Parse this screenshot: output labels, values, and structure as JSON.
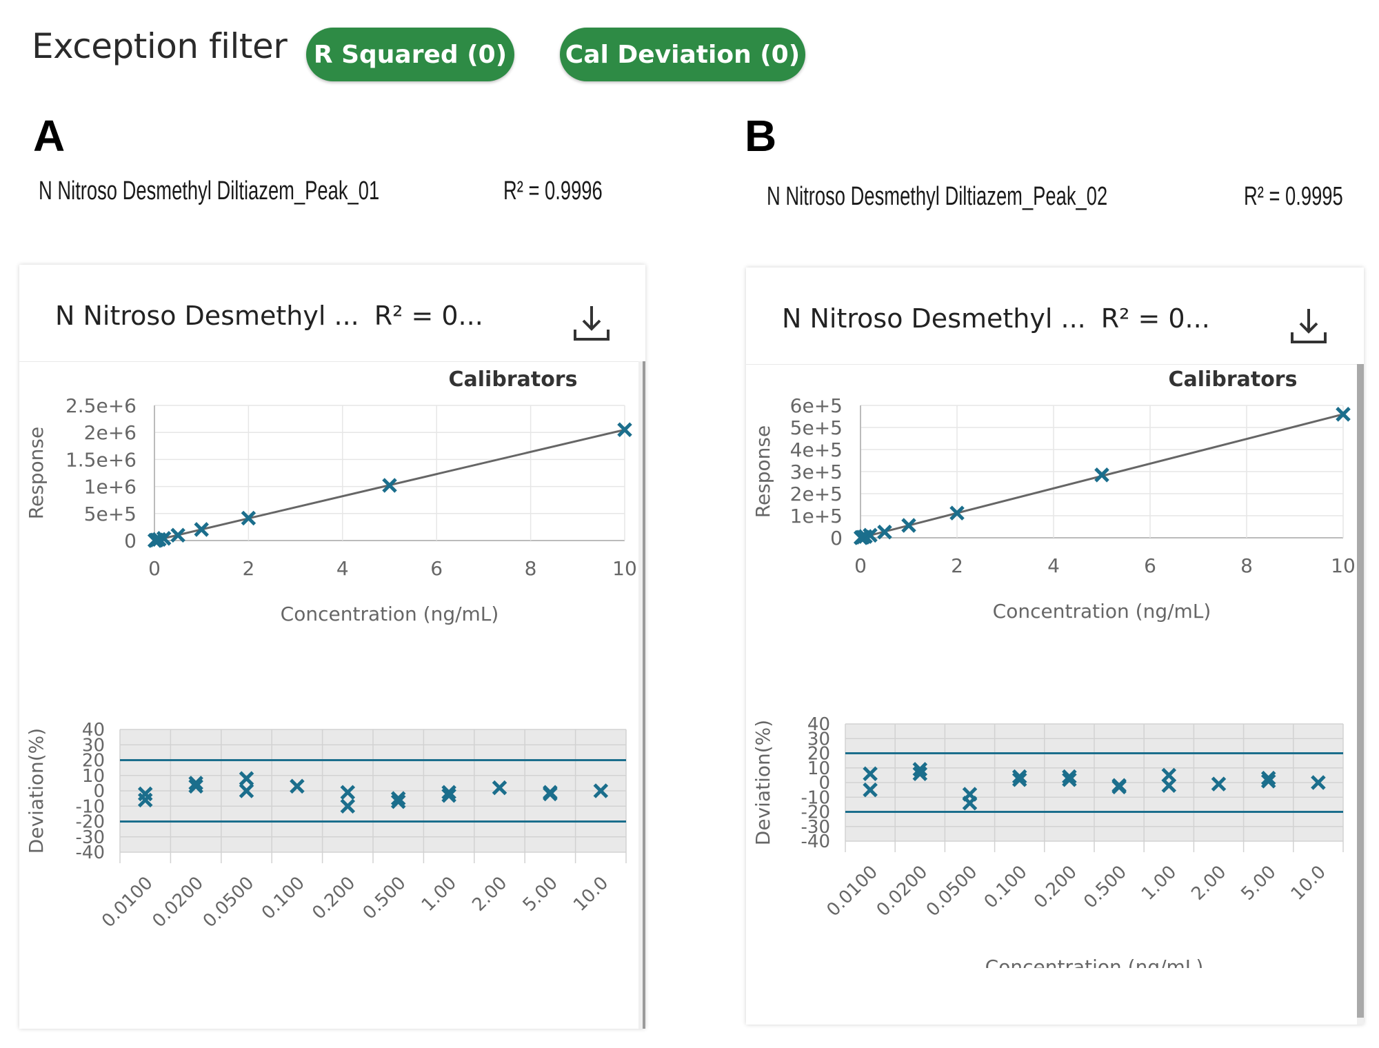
{
  "header": {
    "filter_title": "Exception filter",
    "chips": [
      {
        "label": "R Squared (0)"
      },
      {
        "label": "Cal Deviation (0)"
      }
    ]
  },
  "colors": {
    "chip_green": "#2e8b45",
    "marker_blue": "#1b6e8c",
    "fit_line": "#666666",
    "limit_line": "#1b6e8c"
  },
  "panels": [
    {
      "letter": "A",
      "caption_name": "N Nitroso Desmethyl Diltiazem_Peak_01",
      "caption_r2": "R² = 0.9996",
      "card_title": "N Nitroso Desmethyl ...",
      "card_r2": "R² = 0...",
      "download_icon": "download-icon",
      "chart_data": [
        {
          "type": "scatter",
          "title": "Calibrators",
          "xlabel": "Concentration (ng/mL)",
          "ylabel": "Response",
          "xlim": [
            0,
            10
          ],
          "ylim": [
            0,
            2500000
          ],
          "x_ticks": [
            0,
            2,
            4,
            6,
            8,
            10
          ],
          "y_ticks": [
            0,
            500000,
            1000000,
            1500000,
            2000000,
            2500000
          ],
          "y_tick_labels": [
            "0",
            "5e+5",
            "1e+6",
            "1.5e+6",
            "2e+6",
            "2.5e+6"
          ],
          "grid": true,
          "series": [
            {
              "type": "scatter",
              "x": [
                0.01,
                0.02,
                0.05,
                0.1,
                0.2,
                0.5,
                1,
                2,
                5,
                10
              ],
              "y": [
                2000,
                4100,
                10400,
                20300,
                40500,
                98500,
                205000,
                415000,
                1020000,
                2050000
              ]
            },
            {
              "type": "line",
              "x": [
                0,
                10
              ],
              "y": [
                0,
                2050000
              ]
            }
          ]
        },
        {
          "type": "scatter",
          "xlabel": "Concentration (ng/mL)",
          "ylabel": "Deviation(%)",
          "ylim": [
            -40,
            40
          ],
          "y_ticks": [
            40,
            30,
            20,
            10,
            0,
            -10,
            -20,
            -30,
            -40
          ],
          "categories": [
            "0.0100",
            "0.0200",
            "0.0500",
            "0.100",
            "0.200",
            "0.500",
            "1.00",
            "2.00",
            "5.00",
            "10.0"
          ],
          "limits": [
            20,
            -20
          ],
          "grid": true,
          "series": [
            {
              "points": [
                [
                  0,
                  -2
                ],
                [
                  0,
                  -6
                ],
                [
                  1,
                  5
                ],
                [
                  1,
                  3
                ],
                [
                  2,
                  8
                ],
                [
                  2,
                  0
                ],
                [
                  3,
                  3
                ],
                [
                  4,
                  -1
                ],
                [
                  4,
                  -10
                ],
                [
                  5,
                  -5
                ],
                [
                  5,
                  -7
                ],
                [
                  6,
                  -1
                ],
                [
                  6,
                  -3
                ],
                [
                  7,
                  2
                ],
                [
                  8,
                  -1
                ],
                [
                  8,
                  -2
                ],
                [
                  9,
                  0
                ]
              ]
            }
          ]
        }
      ]
    },
    {
      "letter": "B",
      "caption_name": "N Nitroso Desmethyl Diltiazem_Peak_02",
      "caption_r2": "R² = 0.9995",
      "card_title": "N Nitroso Desmethyl ...",
      "card_r2": "R² = 0...",
      "download_icon": "download-icon",
      "chart_data": [
        {
          "type": "scatter",
          "title": "Calibrators",
          "xlabel": "Concentration (ng/mL)",
          "ylabel": "Response",
          "xlim": [
            0,
            10
          ],
          "ylim": [
            0,
            600000
          ],
          "x_ticks": [
            0,
            2,
            4,
            6,
            8,
            10
          ],
          "y_ticks": [
            0,
            100000,
            200000,
            300000,
            400000,
            500000,
            600000
          ],
          "y_tick_labels": [
            "0",
            "1e+5",
            "2e+5",
            "3e+5",
            "4e+5",
            "5e+5",
            "6e+5"
          ],
          "grid": true,
          "series": [
            {
              "type": "scatter",
              "x": [
                0.01,
                0.02,
                0.05,
                0.1,
                0.2,
                0.5,
                1,
                2,
                5,
                10
              ],
              "y": [
                600,
                1200,
                2800,
                5800,
                11500,
                26000,
                56000,
                112000,
                285000,
                560000
              ]
            },
            {
              "type": "line",
              "x": [
                0,
                10
              ],
              "y": [
                0,
                560000
              ]
            }
          ]
        },
        {
          "type": "scatter",
          "xlabel": "Concentration (ng/mL)",
          "ylabel": "Deviation(%)",
          "ylim": [
            -40,
            40
          ],
          "y_ticks": [
            40,
            30,
            20,
            10,
            0,
            -10,
            -20,
            -30,
            -40
          ],
          "categories": [
            "0.0100",
            "0.0200",
            "0.0500",
            "0.100",
            "0.200",
            "0.500",
            "1.00",
            "2.00",
            "5.00",
            "10.0"
          ],
          "limits": [
            20,
            -20
          ],
          "grid": true,
          "series": [
            {
              "points": [
                [
                  0,
                  6
                ],
                [
                  0,
                  -5
                ],
                [
                  1,
                  9
                ],
                [
                  1,
                  6
                ],
                [
                  2,
                  -8
                ],
                [
                  2,
                  -14
                ],
                [
                  3,
                  4
                ],
                [
                  3,
                  2
                ],
                [
                  4,
                  4
                ],
                [
                  4,
                  2
                ],
                [
                  5,
                  -2
                ],
                [
                  5,
                  -3
                ],
                [
                  6,
                  5
                ],
                [
                  6,
                  -2
                ],
                [
                  7,
                  -1
                ],
                [
                  8,
                  3
                ],
                [
                  8,
                  1
                ],
                [
                  9,
                  0
                ]
              ]
            }
          ]
        }
      ]
    }
  ]
}
